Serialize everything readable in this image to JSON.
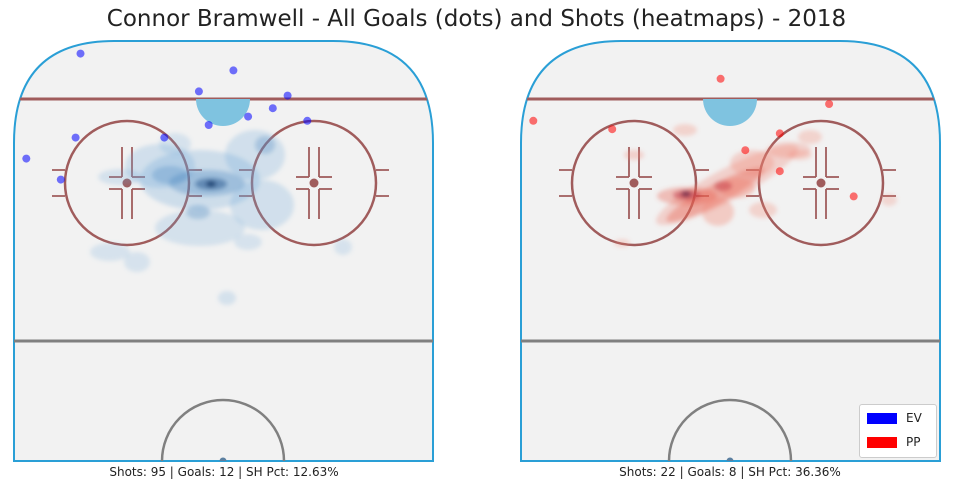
{
  "title": "Connor Bramwell - All Goals (dots) and Shots (heatmaps) - 2018",
  "colors": {
    "ice": "#f2f2f2",
    "boards": "#2a9fd6",
    "red_line": "#a05c5c",
    "center_line": "#808080",
    "crease": "#7fc3e0",
    "ev": "#0000ff",
    "pp": "#ff0000"
  },
  "chart_data": [
    {
      "type": "heatmap",
      "situation": "EV",
      "stats_text": "Shots: 95 | Goals: 12 | SH Pct: 12.63%",
      "shots": 95,
      "goals": 12,
      "sh_pct": 12.63,
      "goal_points": [
        {
          "x": -33,
          "y": 67
        },
        {
          "x": -40,
          "y": 72
        },
        {
          "x": -30,
          "y": 77
        },
        {
          "x": -12,
          "y": 77
        },
        {
          "x": -3,
          "y": 80
        },
        {
          "x": -5,
          "y": 88
        },
        {
          "x": 5,
          "y": 82
        },
        {
          "x": 10,
          "y": 84
        },
        {
          "x": 17,
          "y": 81
        },
        {
          "x": 13,
          "y": 87
        },
        {
          "x": 2,
          "y": 93
        },
        {
          "x": -29,
          "y": 97
        }
      ],
      "density_levels": [
        1,
        2,
        3,
        4
      ]
    },
    {
      "type": "heatmap",
      "situation": "PP",
      "stats_text": "Shots: 22 | Goals: 8 | SH Pct: 36.36%",
      "shots": 22,
      "goals": 8,
      "sh_pct": 36.36,
      "goal_points": [
        {
          "x": 25,
          "y": 63
        },
        {
          "x": 10,
          "y": 69
        },
        {
          "x": 3,
          "y": 74
        },
        {
          "x": -24,
          "y": 79
        },
        {
          "x": -40,
          "y": 81
        },
        {
          "x": 10,
          "y": 78
        },
        {
          "x": 20,
          "y": 85
        },
        {
          "x": -2,
          "y": 91
        }
      ],
      "density_levels": [
        1,
        2,
        3,
        4
      ]
    }
  ],
  "legend": {
    "items": [
      {
        "label": "EV",
        "color": "#0000ff"
      },
      {
        "label": "PP",
        "color": "#ff0000"
      }
    ]
  }
}
